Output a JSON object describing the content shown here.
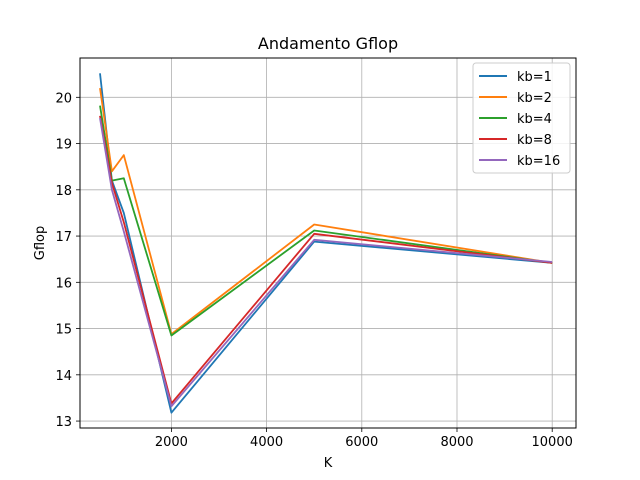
{
  "chart_data": {
    "type": "line",
    "title": "Andamento Gflop",
    "xlabel": "K",
    "ylabel": "Gflop",
    "xlim": [
      80,
      10500
    ],
    "ylim": [
      12.85,
      20.85
    ],
    "xticks": [
      2000,
      4000,
      6000,
      8000,
      10000
    ],
    "xtick_labels": [
      "2000",
      "4000",
      "6000",
      "8000",
      "10000"
    ],
    "yticks": [
      13,
      14,
      15,
      16,
      17,
      18,
      19,
      20
    ],
    "ytick_labels": [
      "13",
      "14",
      "15",
      "16",
      "17",
      "18",
      "19",
      "20"
    ],
    "grid": true,
    "legend_position": "top-right",
    "series": [
      {
        "name": "kb=1",
        "color": "#1f77b4",
        "points": [
          [
            500,
            20.52
          ],
          [
            750,
            18.2
          ],
          [
            1000,
            17.5
          ],
          [
            2000,
            13.18
          ],
          [
            5000,
            16.88
          ],
          [
            10000,
            16.42
          ]
        ]
      },
      {
        "name": "kb=2",
        "color": "#ff7f0e",
        "points": [
          [
            500,
            20.2
          ],
          [
            750,
            18.4
          ],
          [
            1000,
            18.75
          ],
          [
            2000,
            14.88
          ],
          [
            5000,
            17.25
          ],
          [
            10000,
            16.42
          ]
        ]
      },
      {
        "name": "kb=4",
        "color": "#2ca02c",
        "points": [
          [
            500,
            19.82
          ],
          [
            750,
            18.2
          ],
          [
            1000,
            18.25
          ],
          [
            2000,
            14.85
          ],
          [
            5000,
            17.12
          ],
          [
            10000,
            16.42
          ]
        ]
      },
      {
        "name": "kb=8",
        "color": "#d62728",
        "points": [
          [
            500,
            19.6
          ],
          [
            750,
            18.15
          ],
          [
            1000,
            17.3
          ],
          [
            2000,
            13.38
          ],
          [
            5000,
            17.05
          ],
          [
            10000,
            16.42
          ]
        ]
      },
      {
        "name": "kb=16",
        "color": "#9467bd",
        "points": [
          [
            500,
            19.55
          ],
          [
            750,
            18.0
          ],
          [
            1000,
            17.1
          ],
          [
            2000,
            13.32
          ],
          [
            5000,
            16.92
          ],
          [
            10000,
            16.44
          ]
        ]
      }
    ]
  }
}
